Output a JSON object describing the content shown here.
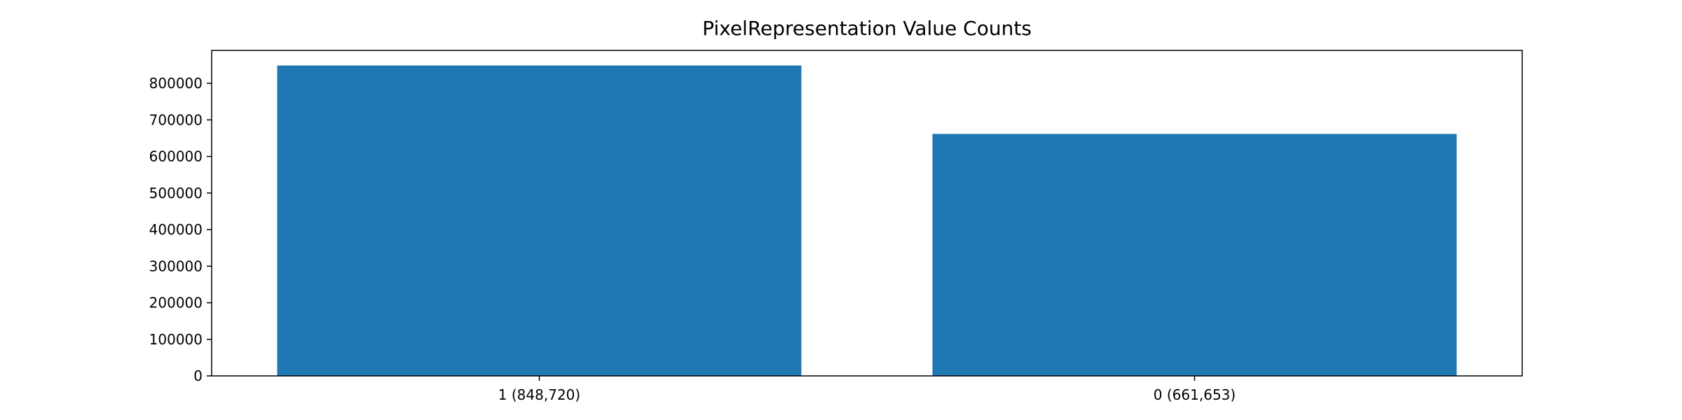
{
  "chart_data": {
    "type": "bar",
    "title": "PixelRepresentation Value Counts",
    "xlabel": "",
    "ylabel": "",
    "categories": [
      "1 (848,720)",
      "0 (661,653)"
    ],
    "values": [
      848720,
      661653
    ],
    "ylim": [
      0,
      890000
    ],
    "yticks": [
      0,
      100000,
      200000,
      300000,
      400000,
      500000,
      600000,
      700000,
      800000
    ],
    "ytick_labels": [
      "0",
      "100000",
      "200000",
      "300000",
      "400000",
      "500000",
      "600000",
      "700000",
      "800000"
    ],
    "bar_color": "#1f77b4",
    "grid": false,
    "legend": "none"
  }
}
